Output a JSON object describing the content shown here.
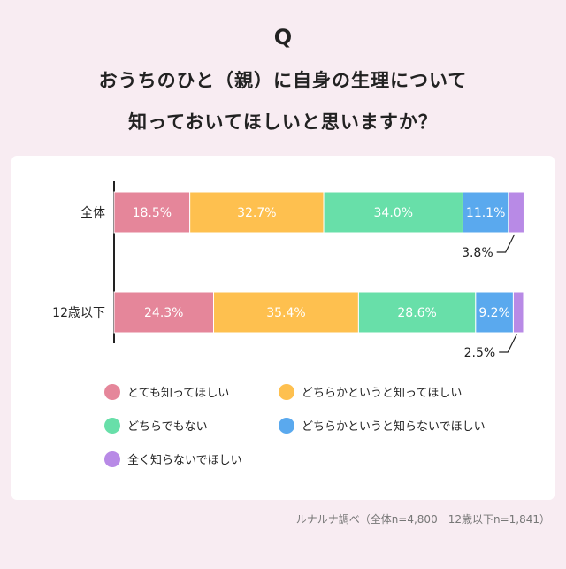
{
  "header": {
    "q_mark": "Q",
    "title_line1": "おうちのひと（親）に自身の生理について",
    "title_line2": "知っておいてほしいと思いますか？"
  },
  "colors": [
    "#e5869a",
    "#fec04f",
    "#68dfa9",
    "#5aa9ee",
    "#b88ae6"
  ],
  "chart_data": {
    "type": "bar",
    "orientation": "horizontal",
    "stacked": true,
    "categories": [
      "全体",
      "12歳以下"
    ],
    "series": [
      {
        "name": "とても知ってほしい",
        "values": [
          18.5,
          24.3
        ],
        "labels": [
          "18.5%",
          "24.3%"
        ]
      },
      {
        "name": "どちらかというと知ってほしい",
        "values": [
          32.7,
          35.4
        ],
        "labels": [
          "32.7%",
          "35.4%"
        ]
      },
      {
        "name": "どちらでもない",
        "values": [
          34.0,
          28.6
        ],
        "labels": [
          "34.0%",
          "28.6%"
        ]
      },
      {
        "name": "どちらかというと知らないでほしい",
        "values": [
          11.1,
          9.2
        ],
        "labels": [
          "11.1%",
          "9.2%"
        ]
      },
      {
        "name": "全く知らないでほしい",
        "values": [
          3.8,
          2.5
        ],
        "labels": [
          "3.8%",
          "2.5%"
        ]
      }
    ],
    "xlim": [
      0,
      100
    ],
    "legend_position": "bottom"
  },
  "source": "ルナルナ調べ（全体n=4,800　12歳以下n=1,841）"
}
